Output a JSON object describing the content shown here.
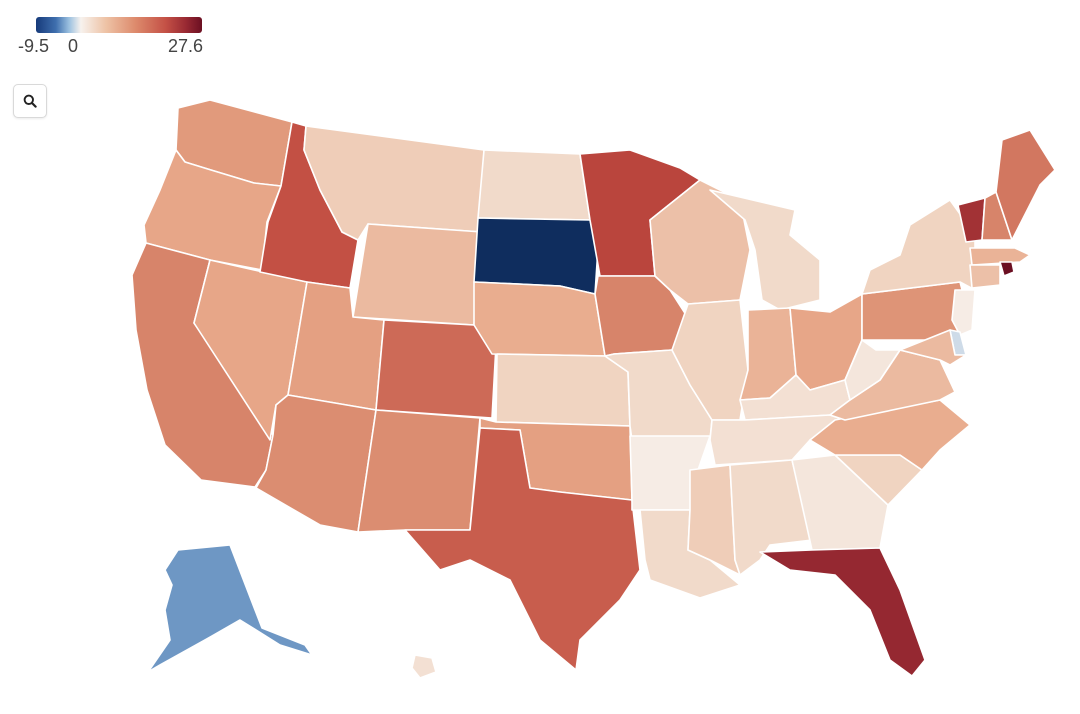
{
  "legend": {
    "min_label": "-9.5",
    "zero_label": "0",
    "max_label": "27.6",
    "min": -9.5,
    "max": 27.6
  },
  "search": {
    "icon": "search-icon"
  },
  "states": [
    {
      "code": "WA",
      "value": 14
    },
    {
      "code": "OR",
      "value": 12
    },
    {
      "code": "CA",
      "value": 17
    },
    {
      "code": "NV",
      "value": 12
    },
    {
      "code": "ID",
      "value": 21
    },
    {
      "code": "MT",
      "value": 6
    },
    {
      "code": "WY",
      "value": 9
    },
    {
      "code": "UT",
      "value": 13
    },
    {
      "code": "AZ",
      "value": 16
    },
    {
      "code": "CO",
      "value": 19
    },
    {
      "code": "NM",
      "value": 16
    },
    {
      "code": "ND",
      "value": 4
    },
    {
      "code": "SD",
      "value": -9.5
    },
    {
      "code": "NE",
      "value": 11
    },
    {
      "code": "KS",
      "value": 5
    },
    {
      "code": "OK",
      "value": 13
    },
    {
      "code": "TX",
      "value": 20
    },
    {
      "code": "MN",
      "value": 22
    },
    {
      "code": "IA",
      "value": 17
    },
    {
      "code": "MO",
      "value": 4
    },
    {
      "code": "AR",
      "value": 1
    },
    {
      "code": "LA",
      "value": 4
    },
    {
      "code": "WI",
      "value": 8
    },
    {
      "code": "IL",
      "value": 5
    },
    {
      "code": "MI",
      "value": 4
    },
    {
      "code": "IN",
      "value": 10
    },
    {
      "code": "OH",
      "value": 12
    },
    {
      "code": "KY",
      "value": 3
    },
    {
      "code": "TN",
      "value": 3
    },
    {
      "code": "MS",
      "value": 6
    },
    {
      "code": "AL",
      "value": 4
    },
    {
      "code": "GA",
      "value": 2
    },
    {
      "code": "FL",
      "value": 25
    },
    {
      "code": "SC",
      "value": 5
    },
    {
      "code": "NC",
      "value": 11
    },
    {
      "code": "VA",
      "value": 9
    },
    {
      "code": "WV",
      "value": 2
    },
    {
      "code": "PA",
      "value": 15
    },
    {
      "code": "NY",
      "value": 5
    },
    {
      "code": "VT",
      "value": 24
    },
    {
      "code": "NH",
      "value": 17
    },
    {
      "code": "ME",
      "value": 18
    },
    {
      "code": "MA",
      "value": 10
    },
    {
      "code": "CT",
      "value": 8
    },
    {
      "code": "RI",
      "value": 27.6
    },
    {
      "code": "NJ",
      "value": 1
    },
    {
      "code": "DE",
      "value": -2
    },
    {
      "code": "MD",
      "value": 9
    },
    {
      "code": "AK",
      "value": -5.5
    },
    {
      "code": "HI",
      "value": 3
    }
  ]
}
